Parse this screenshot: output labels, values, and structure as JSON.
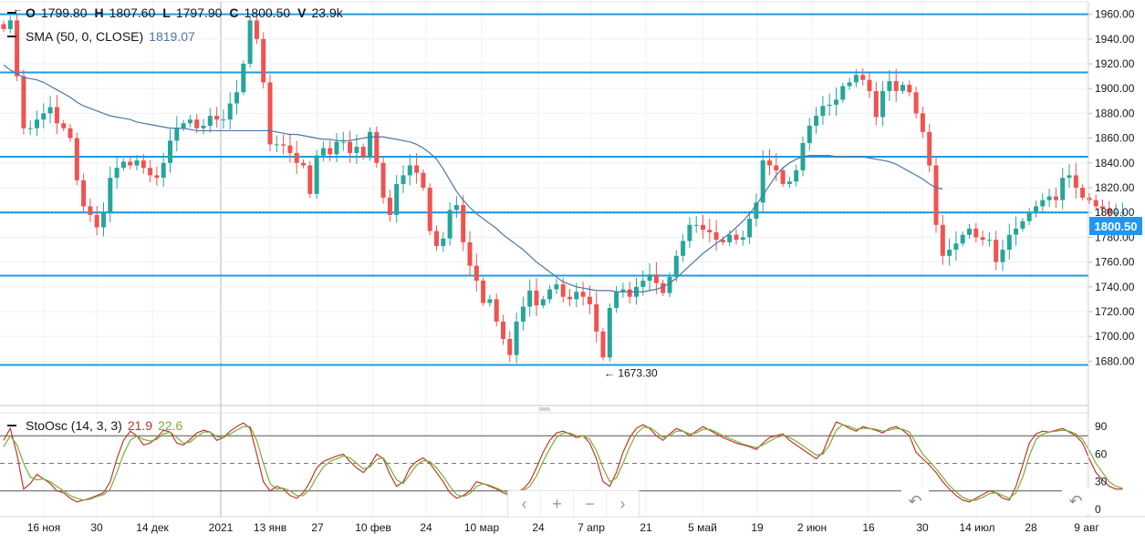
{
  "ohlc_legend": {
    "o_label": "O",
    "o_value": "1799.80",
    "h_label": "H",
    "h_value": "1807.60",
    "l_label": "L",
    "l_value": "1797.90",
    "c_label": "C",
    "c_value": "1800.50",
    "v_label": "V",
    "v_value": "23.9k"
  },
  "sma_legend": {
    "label": "SMA (50, 0, CLOSE)",
    "value": "1819.07"
  },
  "stoch_legend": {
    "label": "StoOsc (14, 3, 3)",
    "k_value": "21.9",
    "d_value": "22.6"
  },
  "last_price_label": "1800.50",
  "low_marker": {
    "arrow": "←",
    "label": "1673.30"
  },
  "high_marker": {
    "arrow": "←"
  },
  "nav": {
    "prev": "‹",
    "zoom_in": "+",
    "zoom_out": "−",
    "next": "›",
    "reset": "↶"
  },
  "colors": {
    "up": "#26a69a",
    "down": "#ef5350",
    "sma": "#4a76a8",
    "hline": "#1e9be0",
    "k_line": "#c0392b",
    "d_line": "#7cab3a",
    "grid": "#eef0f3",
    "last_price": "#2196f3"
  },
  "chart_data": [
    {
      "type": "candlestick",
      "ylim": [
        1645,
        1970
      ],
      "y_ticks": [
        1680,
        1700,
        1720,
        1740,
        1760,
        1780,
        1800,
        1820,
        1840,
        1860,
        1880,
        1900,
        1920,
        1940,
        1960
      ],
      "x_tick_labels": [
        "16 ноя",
        "30",
        "14 дек",
        "2021",
        "13 янв",
        "27",
        "10 фев",
        "24",
        "10 мар",
        "24",
        "7 апр",
        "21",
        "5 май",
        "19",
        "2 июн",
        "16",
        "30",
        "14 июл",
        "28",
        "9 авг"
      ],
      "horizontal_levels": [
        1960,
        1913,
        1845,
        1800,
        1749,
        1677
      ],
      "close": [
        1948,
        1955,
        1910,
        1868,
        1868,
        1875,
        1880,
        1885,
        1872,
        1868,
        1860,
        1826,
        1805,
        1798,
        1788,
        1800,
        1828,
        1836,
        1841,
        1838,
        1842,
        1836,
        1830,
        1828,
        1840,
        1858,
        1868,
        1872,
        1875,
        1868,
        1870,
        1878,
        1875,
        1875,
        1888,
        1897,
        1920,
        1955,
        1940,
        1905,
        1855,
        1855,
        1854,
        1848,
        1840,
        1838,
        1815,
        1846,
        1852,
        1847,
        1857,
        1857,
        1848,
        1853,
        1845,
        1865,
        1840,
        1812,
        1798,
        1823,
        1830,
        1838,
        1832,
        1820,
        1785,
        1773,
        1779,
        1802,
        1806,
        1776,
        1757,
        1745,
        1727,
        1730,
        1712,
        1698,
        1685,
        1712,
        1724,
        1737,
        1725,
        1730,
        1738,
        1742,
        1732,
        1730,
        1736,
        1732,
        1726,
        1704,
        1683,
        1723,
        1736,
        1738,
        1732,
        1740,
        1745,
        1750,
        1743,
        1735,
        1748,
        1765,
        1777,
        1790,
        1790,
        1786,
        1784,
        1778,
        1776,
        1782,
        1778,
        1780,
        1795,
        1808,
        1842,
        1838,
        1834,
        1823,
        1825,
        1834,
        1856,
        1870,
        1878,
        1886,
        1887,
        1891,
        1902,
        1905,
        1911,
        1907,
        1898,
        1877,
        1898,
        1906,
        1898,
        1903,
        1897,
        1880,
        1865,
        1838,
        1790,
        1765,
        1770,
        1775,
        1782,
        1787,
        1780,
        1778,
        1778,
        1760,
        1770,
        1782,
        1787,
        1793,
        1800,
        1805,
        1810,
        1813,
        1810,
        1828,
        1830,
        1820,
        1812,
        1810,
        1805,
        1803,
        1799,
        1800,
        1800
      ],
      "sma": [
        1919,
        1915,
        1912,
        1909,
        1908,
        1907,
        1905,
        1902,
        1899,
        1896,
        1893,
        1889,
        1886,
        1884,
        1882,
        1880,
        1878,
        1877,
        1876,
        1875,
        1873,
        1872,
        1871,
        1870,
        1869,
        1868,
        1868,
        1868,
        1867,
        1866,
        1866,
        1866,
        1866,
        1866,
        1866,
        1866,
        1866,
        1866,
        1866,
        1866,
        1866,
        1865,
        1864,
        1863,
        1863,
        1862,
        1861,
        1860,
        1859,
        1859,
        1858,
        1858,
        1858,
        1859,
        1860,
        1861,
        1861,
        1861,
        1860,
        1859,
        1858,
        1857,
        1855,
        1852,
        1848,
        1843,
        1835,
        1826,
        1817,
        1810,
        1804,
        1799,
        1795,
        1791,
        1787,
        1782,
        1778,
        1774,
        1770,
        1765,
        1760,
        1756,
        1752,
        1748,
        1744,
        1742,
        1740,
        1739,
        1738,
        1737,
        1737,
        1737,
        1736,
        1736,
        1736,
        1736,
        1736,
        1737,
        1738,
        1740,
        1743,
        1747,
        1752,
        1757,
        1762,
        1767,
        1771,
        1775,
        1779,
        1783,
        1788,
        1793,
        1799,
        1806,
        1814,
        1822,
        1830,
        1836,
        1840,
        1843,
        1845,
        1846,
        1846,
        1846,
        1846,
        1845,
        1845,
        1845,
        1845,
        1845,
        1844,
        1843,
        1842,
        1841,
        1839,
        1836,
        1833,
        1830,
        1827,
        1823,
        1820,
        1819
      ]
    },
    {
      "type": "line",
      "ylim": [
        -8,
        103
      ],
      "y_ticks": [
        0,
        30,
        60,
        90
      ],
      "levels_solid": [
        80,
        20
      ],
      "level_dashed": 50,
      "series": [
        {
          "name": "%K",
          "values": [
            75,
            88,
            60,
            22,
            28,
            38,
            33,
            28,
            20,
            18,
            12,
            8,
            10,
            12,
            15,
            18,
            30,
            55,
            75,
            85,
            80,
            70,
            72,
            78,
            86,
            84,
            72,
            70,
            76,
            83,
            86,
            84,
            75,
            78,
            85,
            90,
            94,
            88,
            60,
            30,
            20,
            25,
            22,
            15,
            12,
            18,
            30,
            45,
            52,
            55,
            58,
            60,
            52,
            45,
            40,
            48,
            60,
            55,
            38,
            25,
            30,
            45,
            52,
            56,
            50,
            40,
            30,
            18,
            12,
            15,
            20,
            30,
            28,
            25,
            22,
            18,
            15,
            18,
            22,
            30,
            45,
            62,
            75,
            83,
            85,
            82,
            78,
            80,
            72,
            55,
            30,
            25,
            40,
            62,
            78,
            88,
            92,
            88,
            80,
            75,
            82,
            88,
            85,
            80,
            85,
            90,
            86,
            82,
            78,
            75,
            72,
            70,
            68,
            65,
            72,
            78,
            80,
            82,
            75,
            70,
            65,
            60,
            55,
            62,
            80,
            95,
            92,
            88,
            85,
            90,
            88,
            86,
            83,
            88,
            90,
            86,
            80,
            62,
            55,
            48,
            40,
            30,
            22,
            15,
            10,
            8,
            12,
            16,
            20,
            18,
            12,
            10,
            25,
            48,
            72,
            82,
            85,
            84,
            86,
            88,
            84,
            80,
            72,
            55,
            40,
            32,
            25,
            22,
            22
          ]
        },
        {
          "name": "%D",
          "values": [
            68,
            80,
            70,
            50,
            35,
            32,
            33,
            30,
            25,
            20,
            15,
            12,
            10,
            11,
            14,
            16,
            22,
            40,
            60,
            75,
            80,
            76,
            74,
            76,
            82,
            84,
            78,
            72,
            73,
            79,
            84,
            84,
            79,
            78,
            82,
            86,
            90,
            90,
            75,
            50,
            28,
            22,
            23,
            20,
            15,
            15,
            22,
            35,
            46,
            52,
            55,
            58,
            56,
            50,
            44,
            46,
            54,
            56,
            45,
            32,
            28,
            38,
            48,
            53,
            52,
            45,
            36,
            25,
            16,
            14,
            17,
            25,
            28,
            26,
            23,
            20,
            17,
            17,
            20,
            25,
            36,
            52,
            66,
            78,
            83,
            83,
            80,
            80,
            76,
            64,
            45,
            30,
            34,
            50,
            68,
            82,
            89,
            89,
            84,
            78,
            80,
            85,
            85,
            82,
            83,
            87,
            87,
            84,
            80,
            77,
            74,
            71,
            69,
            67,
            70,
            74,
            78,
            80,
            78,
            74,
            69,
            64,
            59,
            60,
            70,
            86,
            92,
            90,
            87,
            88,
            88,
            87,
            85,
            86,
            88,
            87,
            84,
            72,
            60,
            52,
            44,
            35,
            26,
            19,
            13,
            10,
            10,
            13,
            17,
            18,
            15,
            12,
            18,
            35,
            58,
            76,
            82,
            84,
            85,
            86,
            85,
            82,
            76,
            64,
            50,
            40,
            30,
            25,
            23
          ]
        }
      ]
    }
  ]
}
